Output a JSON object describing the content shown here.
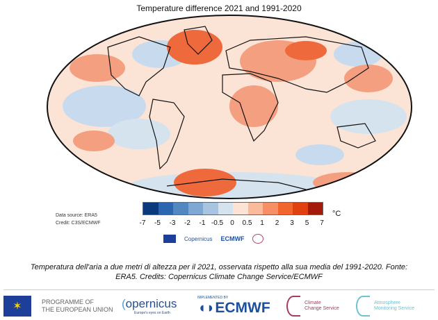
{
  "title": "Temperature difference 2021 and 1991-2020",
  "data_source": "Data source: ERA5",
  "credit": "Credit: C3S/ECMWF",
  "legend": {
    "ticks": [
      "-7",
      "-5",
      "-3",
      "-2",
      "-1",
      "-0.5",
      "0",
      "0.5",
      "1",
      "2",
      "3",
      "5",
      "7"
    ],
    "unit": "°C",
    "colors": [
      "#0b3a7c",
      "#2c66ae",
      "#5387c0",
      "#7ea8d3",
      "#a7c4e1",
      "#d5e3ef",
      "#fde3d4",
      "#f9bb9c",
      "#f68e66",
      "#f1652f",
      "#e0420f",
      "#a31b0a"
    ]
  },
  "map_colors": {
    "ocean_base": "#fbe3d6",
    "cool": "#c8dbee",
    "warm": "#f4a080",
    "hot": "#ee6a3c",
    "border": "#111111"
  },
  "caption": "Temperatura dell'aria a due metri di altezza per il 2021, osservata rispetto alla sua media del 1991-2020. Fonte: ERA5. Credits: Copernicus Climate Change Service/ECMWF",
  "footer": {
    "eu_line1": "PROGRAMME OF",
    "eu_line2": "THE EUROPEAN UNION",
    "copernicus": "opernicus",
    "copernicus_tagline": "Europe's eyes on Earth",
    "ecmwf_small": "IMPLEMENTED BY",
    "ecmwf": "ECMWF",
    "c3s_line1": "Climate",
    "c3s_line2": "Change Service",
    "cams_line1": "Atmosphere",
    "cams_line2": "Monitoring Service"
  },
  "mini_logos": {
    "copernicus": "Copernicus",
    "ecmwf": "ECMWF"
  }
}
